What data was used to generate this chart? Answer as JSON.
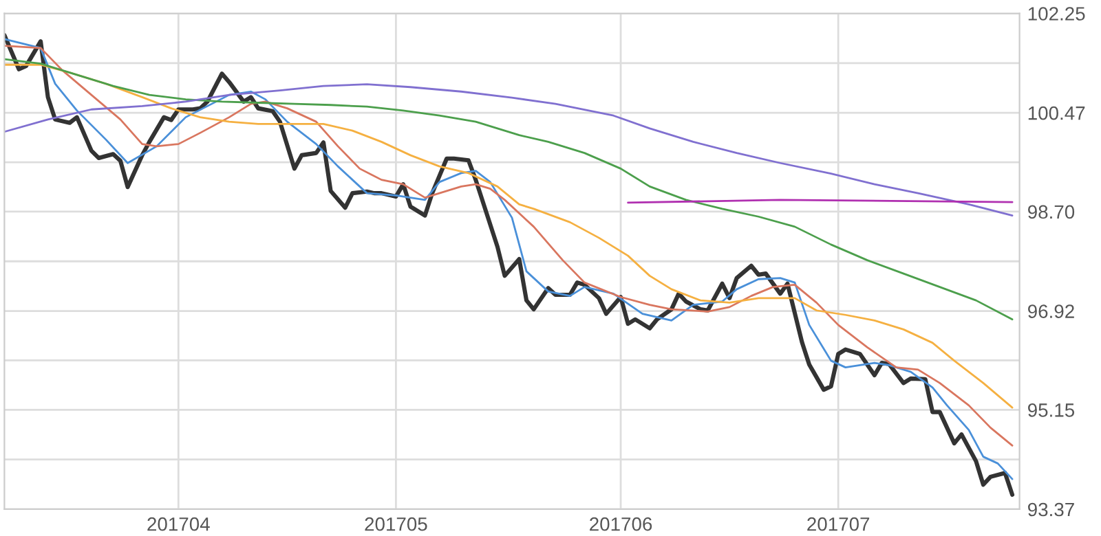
{
  "chart_data": {
    "type": "line",
    "xlim": [
      "2017-03-08",
      "2017-07-26"
    ],
    "xticks": [
      {
        "value": "2017-04-01",
        "label": "201704"
      },
      {
        "value": "2017-05-01",
        "label": "201705"
      },
      {
        "value": "2017-06-01",
        "label": "201706"
      },
      {
        "value": "2017-07-01",
        "label": "201707"
      }
    ],
    "ylim": [
      93.37,
      102.25
    ],
    "yticks": [
      93.37,
      {
        "value": 94.26,
        "label": null
      },
      95.15,
      {
        "value": 96.035,
        "label": null
      },
      96.92,
      {
        "value": 97.81,
        "label": null
      },
      {
        "value": 98.7,
        "label": "98.70"
      },
      {
        "value": 99.585,
        "label": null
      },
      100.47,
      {
        "value": 101.36,
        "label": null
      },
      102.25
    ],
    "grid": true,
    "series": [
      {
        "color": "#333333",
        "x": [
          "2017-03-08",
          "2017-03-10",
          "2017-03-11",
          "2017-03-13",
          "2017-03-14",
          "2017-03-15",
          "2017-03-17",
          "2017-03-18",
          "2017-03-20",
          "2017-03-21",
          "2017-03-23",
          "2017-03-24",
          "2017-03-25",
          "2017-03-27",
          "2017-03-28",
          "2017-03-30",
          "2017-03-31",
          "2017-04-01",
          "2017-04-03",
          "2017-04-04",
          "2017-04-05",
          "2017-04-07",
          "2017-04-08",
          "2017-04-10",
          "2017-04-11",
          "2017-04-12",
          "2017-04-14",
          "2017-04-15",
          "2017-04-17",
          "2017-04-18",
          "2017-04-20",
          "2017-04-21",
          "2017-04-22",
          "2017-04-24",
          "2017-04-25",
          "2017-04-27",
          "2017-04-28",
          "2017-04-29",
          "2017-05-01",
          "2017-05-02",
          "2017-05-03",
          "2017-05-05",
          "2017-05-06",
          "2017-05-08",
          "2017-05-09",
          "2017-05-11",
          "2017-05-12",
          "2017-05-13",
          "2017-05-15",
          "2017-05-16",
          "2017-05-18",
          "2017-05-19",
          "2017-05-20",
          "2017-05-22",
          "2017-05-23",
          "2017-05-25",
          "2017-05-26",
          "2017-05-27",
          "2017-05-29",
          "2017-05-30",
          "2017-06-01",
          "2017-06-02",
          "2017-06-03",
          "2017-06-05",
          "2017-06-06",
          "2017-06-08",
          "2017-06-09",
          "2017-06-10",
          "2017-06-12",
          "2017-06-13",
          "2017-06-15",
          "2017-06-16",
          "2017-06-17",
          "2017-06-19",
          "2017-06-20",
          "2017-06-21",
          "2017-06-23",
          "2017-06-24",
          "2017-06-26",
          "2017-06-27",
          "2017-06-29",
          "2017-06-30",
          "2017-07-01",
          "2017-07-02",
          "2017-07-04",
          "2017-07-06",
          "2017-07-07",
          "2017-07-08",
          "2017-07-10",
          "2017-07-11",
          "2017-07-13",
          "2017-07-14",
          "2017-07-15",
          "2017-07-17",
          "2017-07-18",
          "2017-07-20",
          "2017-07-21",
          "2017-07-22",
          "2017-07-24",
          "2017-07-25"
        ],
        "values": [
          101.86,
          101.25,
          101.31,
          101.75,
          100.75,
          100.35,
          100.29,
          100.39,
          99.79,
          99.66,
          99.73,
          99.61,
          99.14,
          99.71,
          99.95,
          100.39,
          100.34,
          100.53,
          100.53,
          100.55,
          100.67,
          101.17,
          101.02,
          100.67,
          100.75,
          100.55,
          100.5,
          100.31,
          99.47,
          99.71,
          99.75,
          99.94,
          99.07,
          98.77,
          99.03,
          99.06,
          99.03,
          99.03,
          98.97,
          99.19,
          98.79,
          98.63,
          99.03,
          99.65,
          99.65,
          99.62,
          99.27,
          98.87,
          98.07,
          97.55,
          97.85,
          97.11,
          96.95,
          97.33,
          97.21,
          97.21,
          97.43,
          97.39,
          97.15,
          96.87,
          97.17,
          96.69,
          96.77,
          96.61,
          96.77,
          96.95,
          97.23,
          97.09,
          96.95,
          96.93,
          97.41,
          97.15,
          97.51,
          97.73,
          97.57,
          97.59,
          97.23,
          97.41,
          96.36,
          95.96,
          95.51,
          95.57,
          96.15,
          96.23,
          96.15,
          95.77,
          95.99,
          95.97,
          95.63,
          95.71,
          95.7,
          95.11,
          95.11,
          94.55,
          94.71,
          94.23,
          93.81,
          93.95,
          94.02,
          93.63
        ]
      },
      {
        "color": "#4a90d9",
        "x": [
          "2017-03-08",
          "2017-03-13",
          "2017-03-15",
          "2017-03-18",
          "2017-03-22",
          "2017-03-25",
          "2017-03-29",
          "2017-04-02",
          "2017-04-05",
          "2017-04-08",
          "2017-04-11",
          "2017-04-13",
          "2017-04-16",
          "2017-04-20",
          "2017-04-23",
          "2017-04-27",
          "2017-05-01",
          "2017-05-05",
          "2017-05-07",
          "2017-05-10",
          "2017-05-12",
          "2017-05-14",
          "2017-05-17",
          "2017-05-19",
          "2017-05-22",
          "2017-05-25",
          "2017-05-27",
          "2017-05-31",
          "2017-06-04",
          "2017-06-08",
          "2017-06-11",
          "2017-06-15",
          "2017-06-17",
          "2017-06-20",
          "2017-06-23",
          "2017-06-25",
          "2017-06-27",
          "2017-06-30",
          "2017-07-02",
          "2017-07-06",
          "2017-07-08",
          "2017-07-11",
          "2017-07-14",
          "2017-07-16",
          "2017-07-19",
          "2017-07-21",
          "2017-07-23",
          "2017-07-25"
        ],
        "values": [
          101.79,
          101.63,
          100.99,
          100.51,
          99.99,
          99.57,
          99.87,
          100.39,
          100.59,
          100.79,
          100.85,
          100.71,
          100.31,
          99.91,
          99.51,
          99.03,
          98.99,
          98.91,
          99.23,
          99.39,
          99.43,
          99.23,
          98.59,
          97.63,
          97.27,
          97.19,
          97.35,
          97.23,
          96.87,
          96.75,
          97.03,
          97.09,
          97.31,
          97.49,
          97.51,
          97.43,
          96.67,
          96.03,
          95.91,
          95.99,
          95.95,
          95.83,
          95.55,
          95.23,
          94.79,
          94.31,
          94.19,
          93.91
        ]
      },
      {
        "color": "#d9765f",
        "x": [
          "2017-03-08",
          "2017-03-13",
          "2017-03-16",
          "2017-03-20",
          "2017-03-24",
          "2017-03-27",
          "2017-03-29",
          "2017-04-01",
          "2017-04-04",
          "2017-04-08",
          "2017-04-11",
          "2017-04-13",
          "2017-04-16",
          "2017-04-20",
          "2017-04-23",
          "2017-04-26",
          "2017-04-29",
          "2017-05-02",
          "2017-05-05",
          "2017-05-07",
          "2017-05-10",
          "2017-05-12",
          "2017-05-14",
          "2017-05-16",
          "2017-05-20",
          "2017-05-24",
          "2017-05-27",
          "2017-06-01",
          "2017-06-05",
          "2017-06-08",
          "2017-06-13",
          "2017-06-16",
          "2017-06-19",
          "2017-06-22",
          "2017-06-25",
          "2017-06-28",
          "2017-07-01",
          "2017-07-05",
          "2017-07-09",
          "2017-07-12",
          "2017-07-15",
          "2017-07-19",
          "2017-07-22",
          "2017-07-25"
        ],
        "values": [
          101.67,
          101.63,
          101.23,
          100.79,
          100.35,
          99.91,
          99.87,
          99.91,
          100.11,
          100.39,
          100.63,
          100.67,
          100.55,
          100.31,
          99.87,
          99.47,
          99.27,
          99.19,
          98.95,
          99.03,
          99.15,
          99.19,
          99.11,
          98.91,
          98.43,
          97.83,
          97.43,
          97.17,
          97.03,
          96.95,
          96.91,
          96.99,
          97.19,
          97.35,
          97.39,
          97.07,
          96.67,
          96.27,
          95.91,
          95.87,
          95.63,
          95.23,
          94.83,
          94.51
        ]
      },
      {
        "color": "#f5b041",
        "x": [
          "2017-03-08",
          "2017-03-13",
          "2017-03-17",
          "2017-03-22",
          "2017-03-27",
          "2017-03-31",
          "2017-04-04",
          "2017-04-08",
          "2017-04-12",
          "2017-04-16",
          "2017-04-21",
          "2017-04-25",
          "2017-04-29",
          "2017-05-03",
          "2017-05-07",
          "2017-05-11",
          "2017-05-15",
          "2017-05-18",
          "2017-05-20",
          "2017-05-25",
          "2017-05-29",
          "2017-06-02",
          "2017-06-05",
          "2017-06-08",
          "2017-06-12",
          "2017-06-16",
          "2017-06-20",
          "2017-06-25",
          "2017-06-28",
          "2017-07-02",
          "2017-07-06",
          "2017-07-10",
          "2017-07-14",
          "2017-07-17",
          "2017-07-21",
          "2017-07-25"
        ],
        "values": [
          101.33,
          101.33,
          101.19,
          100.99,
          100.75,
          100.55,
          100.39,
          100.31,
          100.27,
          100.27,
          100.27,
          100.15,
          99.95,
          99.71,
          99.51,
          99.39,
          99.15,
          98.83,
          98.75,
          98.51,
          98.23,
          97.91,
          97.55,
          97.31,
          97.11,
          97.07,
          97.15,
          97.15,
          96.93,
          96.85,
          96.75,
          96.59,
          96.35,
          96.03,
          95.63,
          95.19
        ]
      },
      {
        "color": "#4c9f4c",
        "x": [
          "2017-03-08",
          "2017-03-13",
          "2017-03-18",
          "2017-03-23",
          "2017-03-28",
          "2017-04-02",
          "2017-04-07",
          "2017-04-12",
          "2017-04-17",
          "2017-04-22",
          "2017-04-27",
          "2017-05-02",
          "2017-05-07",
          "2017-05-12",
          "2017-05-18",
          "2017-05-22",
          "2017-05-27",
          "2017-06-01",
          "2017-06-05",
          "2017-06-10",
          "2017-06-15",
          "2017-06-20",
          "2017-06-25",
          "2017-06-30",
          "2017-07-05",
          "2017-07-10",
          "2017-07-15",
          "2017-07-20",
          "2017-07-25"
        ],
        "values": [
          101.43,
          101.35,
          101.15,
          100.95,
          100.79,
          100.71,
          100.67,
          100.65,
          100.63,
          100.61,
          100.58,
          100.51,
          100.42,
          100.31,
          100.07,
          99.95,
          99.75,
          99.47,
          99.15,
          98.91,
          98.75,
          98.61,
          98.43,
          98.11,
          97.83,
          97.59,
          97.35,
          97.11,
          96.77
        ]
      },
      {
        "color": "#8070d0",
        "x": [
          "2017-03-08",
          "2017-03-14",
          "2017-03-20",
          "2017-03-27",
          "2017-04-02",
          "2017-04-08",
          "2017-04-15",
          "2017-04-21",
          "2017-04-27",
          "2017-05-03",
          "2017-05-10",
          "2017-05-17",
          "2017-05-23",
          "2017-05-31",
          "2017-06-05",
          "2017-06-11",
          "2017-06-17",
          "2017-06-23",
          "2017-06-30",
          "2017-07-06",
          "2017-07-12",
          "2017-07-19",
          "2017-07-25"
        ],
        "values": [
          100.13,
          100.35,
          100.53,
          100.59,
          100.67,
          100.79,
          100.87,
          100.95,
          100.98,
          100.93,
          100.85,
          100.74,
          100.63,
          100.42,
          100.19,
          99.95,
          99.75,
          99.57,
          99.38,
          99.19,
          99.03,
          98.83,
          98.63
        ]
      },
      {
        "color": "#b030b0",
        "x": [
          "2017-06-02",
          "2017-06-23",
          "2017-07-25"
        ],
        "values": [
          98.86,
          98.91,
          98.87
        ]
      }
    ]
  }
}
